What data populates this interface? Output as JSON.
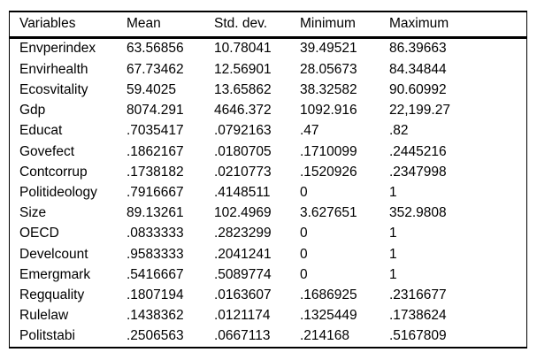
{
  "colors": {
    "background": "#ffffff",
    "text": "#000000",
    "border": "#000000"
  },
  "table": {
    "columns": [
      "Variables",
      "Mean",
      "Std. dev.",
      "Minimum",
      "Maximum"
    ],
    "rows": [
      [
        "Envperindex",
        "63.56856",
        "10.78041",
        "39.49521",
        "86.39663"
      ],
      [
        "Envirhealth",
        "67.73462",
        "12.56901",
        "28.05673",
        "84.34844"
      ],
      [
        "Ecosvitality",
        "59.4025",
        "13.65862",
        "38.32582",
        "90.60992"
      ],
      [
        "Gdp",
        "8074.291",
        "4646.372",
        "1092.916",
        "22,199.27"
      ],
      [
        "Educat",
        ".7035417",
        ".0792163",
        ".47",
        ".82"
      ],
      [
        "Govefect",
        ".1862167",
        ".0180705",
        ".1710099",
        ".2445216"
      ],
      [
        "Contcorrup",
        ".1738182",
        ".0210773",
        ".1520926",
        ".2347998"
      ],
      [
        "Politideology",
        ".7916667",
        ".4148511",
        "0",
        "1"
      ],
      [
        "Size",
        "89.13261",
        "102.4969",
        "3.627651",
        "352.9808"
      ],
      [
        "OECD",
        ".0833333",
        ".2823299",
        "0",
        "1"
      ],
      [
        "Develcount",
        ".9583333",
        ".2041241",
        "0",
        "1"
      ],
      [
        "Emergmark",
        ".5416667",
        ".5089774",
        "0",
        "1"
      ],
      [
        "Regquality",
        ".1807194",
        ".0163607",
        ".1686925",
        ".2316677"
      ],
      [
        "Rulelaw",
        ".1438362",
        ".0121174",
        ".1325449",
        ".1738624"
      ],
      [
        "Politstabi",
        ".2506563",
        ".0667113",
        ".214168",
        ".5167809"
      ]
    ]
  },
  "chart_data": {
    "type": "table",
    "title": "",
    "columns": [
      "Variables",
      "Mean",
      "Std. dev.",
      "Minimum",
      "Maximum"
    ],
    "rows": [
      {
        "variable": "Envperindex",
        "mean": 63.56856,
        "std_dev": 10.78041,
        "minimum": 39.49521,
        "maximum": 86.39663
      },
      {
        "variable": "Envirhealth",
        "mean": 67.73462,
        "std_dev": 12.56901,
        "minimum": 28.05673,
        "maximum": 84.34844
      },
      {
        "variable": "Ecosvitality",
        "mean": 59.4025,
        "std_dev": 13.65862,
        "minimum": 38.32582,
        "maximum": 90.60992
      },
      {
        "variable": "Gdp",
        "mean": 8074.291,
        "std_dev": 4646.372,
        "minimum": 1092.916,
        "maximum": 22199.27
      },
      {
        "variable": "Educat",
        "mean": 0.7035417,
        "std_dev": 0.0792163,
        "minimum": 0.47,
        "maximum": 0.82
      },
      {
        "variable": "Govefect",
        "mean": 0.1862167,
        "std_dev": 0.0180705,
        "minimum": 0.1710099,
        "maximum": 0.2445216
      },
      {
        "variable": "Contcorrup",
        "mean": 0.1738182,
        "std_dev": 0.0210773,
        "minimum": 0.1520926,
        "maximum": 0.2347998
      },
      {
        "variable": "Politideology",
        "mean": 0.7916667,
        "std_dev": 0.4148511,
        "minimum": 0,
        "maximum": 1
      },
      {
        "variable": "Size",
        "mean": 89.13261,
        "std_dev": 102.4969,
        "minimum": 3.627651,
        "maximum": 352.9808
      },
      {
        "variable": "OECD",
        "mean": 0.0833333,
        "std_dev": 0.2823299,
        "minimum": 0,
        "maximum": 1
      },
      {
        "variable": "Develcount",
        "mean": 0.9583333,
        "std_dev": 0.2041241,
        "minimum": 0,
        "maximum": 1
      },
      {
        "variable": "Emergmark",
        "mean": 0.5416667,
        "std_dev": 0.5089774,
        "minimum": 0,
        "maximum": 1
      },
      {
        "variable": "Regquality",
        "mean": 0.1807194,
        "std_dev": 0.0163607,
        "minimum": 0.1686925,
        "maximum": 0.2316677
      },
      {
        "variable": "Rulelaw",
        "mean": 0.1438362,
        "std_dev": 0.0121174,
        "minimum": 0.1325449,
        "maximum": 0.1738624
      },
      {
        "variable": "Politstabi",
        "mean": 0.2506563,
        "std_dev": 0.0667113,
        "minimum": 0.214168,
        "maximum": 0.5167809
      }
    ]
  }
}
